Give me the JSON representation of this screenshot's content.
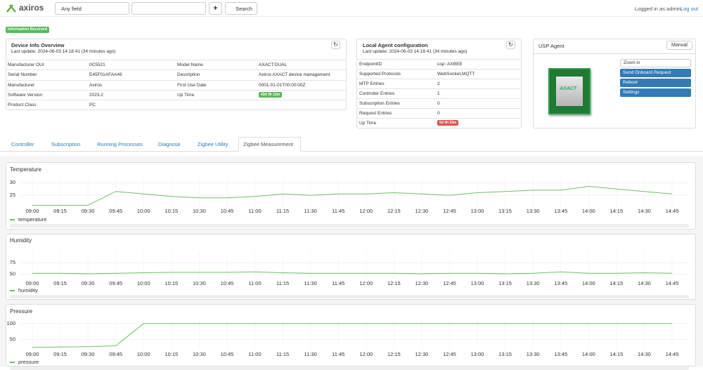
{
  "header": {
    "logo": "axiros",
    "search_field": "Any field",
    "plus": "+",
    "search_button": "Search",
    "logged_in": "Logged in as admin,",
    "logout": "Log out"
  },
  "badge": "Information Received",
  "device_info": {
    "title": "Device Info Overview",
    "last_update": "Last update: 2024-06-03 14:18:41 (34 minutes ago)",
    "rows": [
      [
        "Manufacturer OUI",
        "0C5521",
        "Model Name",
        "AXACT:DUAL"
      ],
      [
        "Serial Number",
        "E45F01AFAA46",
        "Description",
        "Axiros AXACT device management"
      ],
      [
        "Manufacturer",
        "Axiros",
        "First Use Date",
        "0001-01-01T00:00:00Z"
      ],
      [
        "Software Version",
        "2023.2",
        "Up Time",
        "43d 3h 12m"
      ],
      [
        "Product Class",
        "PC"
      ]
    ]
  },
  "agent_config": {
    "title": "Local Agent configuration",
    "last_update": "Last update: 2024-06-03 14:18:41 (34 minutes ago)",
    "rows": [
      [
        "EndpointID",
        "usp::AXBEE"
      ],
      [
        "Supported Protocols",
        "WebSocket,MQTT"
      ],
      [
        "MTP Entries",
        "2"
      ],
      [
        "Controller Entries",
        "1"
      ],
      [
        "Subscription Entries",
        "0"
      ],
      [
        "Request Entries",
        "0"
      ],
      [
        "Up Time",
        "5d 0h 53m"
      ]
    ]
  },
  "usp_agent": {
    "title": "USP Agent",
    "manual": "Manual",
    "chip_label": "AXACT",
    "zoom": "Zoom in",
    "buttons": [
      "Send Onboard Request",
      "Reboot",
      "Settings"
    ]
  },
  "tabs": {
    "items": [
      "Controller",
      "Subscription",
      "Running Processes",
      "Diagnose",
      "Zigbee Utility",
      "Zigbee Measurement"
    ],
    "active": 5
  },
  "chart_data": [
    {
      "type": "line",
      "title": "Temperature",
      "categories": [
        "09:00",
        "09:15",
        "09:30",
        "09:45",
        "10:00",
        "10:15",
        "10:30",
        "10:45",
        "11:00",
        "11:15",
        "11:30",
        "11:45",
        "12:00",
        "12:15",
        "12:30",
        "12:45",
        "13:00",
        "13:15",
        "13:30",
        "13:45",
        "14:00",
        "14:15",
        "14:30",
        "14:45"
      ],
      "series": [
        {
          "name": "temperature",
          "color": "#73bf69",
          "values": [
            21,
            21,
            21,
            26.5,
            25.5,
            24.5,
            24,
            24,
            24.5,
            25.5,
            25,
            25.5,
            25.5,
            26,
            25.5,
            25,
            26,
            26.5,
            27,
            27,
            28.5,
            27.5,
            26.5,
            25.5
          ]
        }
      ],
      "ylim": [
        20,
        32
      ],
      "yticks": [
        25,
        30
      ],
      "grid": true
    },
    {
      "type": "line",
      "title": "Humidity",
      "categories": [
        "09:00",
        "09:15",
        "09:30",
        "09:45",
        "10:00",
        "10:15",
        "10:30",
        "10:45",
        "11:00",
        "11:15",
        "11:30",
        "11:45",
        "12:00",
        "12:15",
        "12:30",
        "12:45",
        "13:00",
        "13:15",
        "13:30",
        "13:45",
        "14:00",
        "14:15",
        "14:30",
        "14:45"
      ],
      "series": [
        {
          "name": "humidity",
          "color": "#73bf69",
          "values": [
            52,
            52,
            51,
            52,
            53,
            54,
            54,
            54,
            55,
            53,
            52,
            52,
            52,
            52,
            51,
            52,
            52,
            51,
            52,
            55,
            52,
            52,
            53,
            52
          ]
        }
      ],
      "ylim": [
        40,
        100
      ],
      "yticks": [
        50,
        75
      ],
      "grid": true
    },
    {
      "type": "line",
      "title": "Pressure",
      "categories": [
        "09:00",
        "09:15",
        "09:30",
        "09:45",
        "10:00",
        "10:15",
        "10:30",
        "10:45",
        "11:00",
        "11:15",
        "11:30",
        "11:45",
        "12:00",
        "12:15",
        "12:30",
        "12:45",
        "13:00",
        "13:15",
        "13:30",
        "13:45",
        "14:00",
        "14:15",
        "14:30",
        "14:45"
      ],
      "series": [
        {
          "name": "pressure",
          "color": "#73bf69",
          "values": [
            25,
            26,
            27,
            30,
            100,
            100,
            100,
            100,
            100,
            100,
            100,
            100,
            100,
            100,
            100,
            100,
            100,
            100,
            100,
            100,
            100,
            100,
            100,
            100
          ]
        }
      ],
      "ylim": [
        20,
        115
      ],
      "yticks": [
        50,
        100
      ],
      "grid": true
    }
  ]
}
